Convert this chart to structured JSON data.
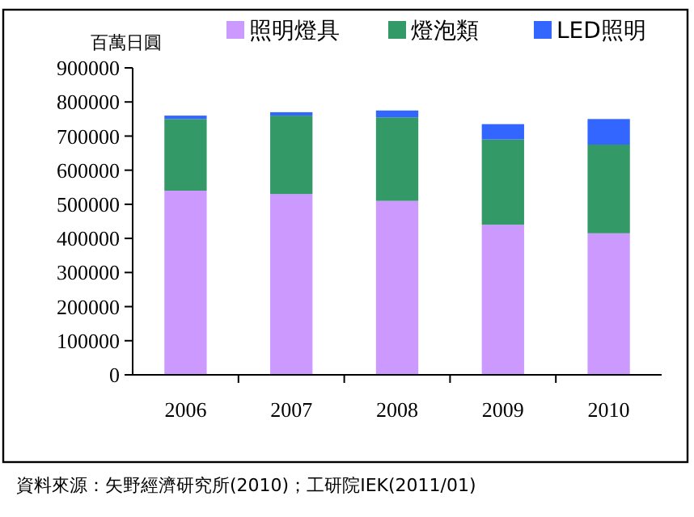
{
  "chart_data": {
    "type": "bar",
    "stacked": true,
    "ylabel": "百萬日圓",
    "categories": [
      "2006",
      "2007",
      "2008",
      "2009",
      "2010"
    ],
    "series": [
      {
        "name": "照明燈具",
        "color": "#cc99ff",
        "values": [
          540000,
          530000,
          510000,
          440000,
          415000
        ]
      },
      {
        "name": "燈泡類",
        "color": "#339966",
        "values": [
          210000,
          230000,
          245000,
          250000,
          260000
        ]
      },
      {
        "name": "LED照明",
        "color": "#3366ff",
        "values": [
          10000,
          10000,
          20000,
          45000,
          75000
        ]
      }
    ],
    "ylim": [
      0,
      900000
    ],
    "yticks": [
      0,
      100000,
      200000,
      300000,
      400000,
      500000,
      600000,
      700000,
      800000,
      900000
    ],
    "grid": false,
    "legend": "top",
    "annotations": [
      "資料來源：矢野經濟研究所(2010)；工研院IEK(2011/01)"
    ]
  }
}
